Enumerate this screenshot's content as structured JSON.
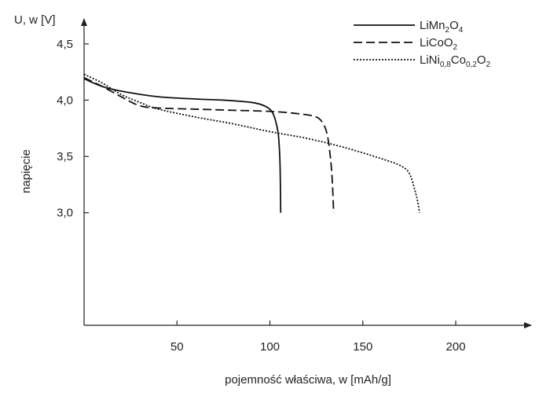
{
  "chart_data": {
    "type": "line",
    "xlabel": "pojemność właściwa, w [mAh/g]",
    "ylabel": "napięcie",
    "y_axis_unit_label": "U, w [V]",
    "xlim": [
      0,
      230
    ],
    "ylim": [
      2.0,
      4.75
    ],
    "x_ticks": [
      {
        "value": 50,
        "label": "50"
      },
      {
        "value": 100,
        "label": "100"
      },
      {
        "value": 150,
        "label": "150"
      },
      {
        "value": 200,
        "label": "200"
      }
    ],
    "y_ticks": [
      {
        "value": 3.0,
        "label": "3,0"
      },
      {
        "value": 3.5,
        "label": "3,5"
      },
      {
        "value": 4.0,
        "label": "4,0"
      },
      {
        "value": 4.5,
        "label": "4,5"
      }
    ],
    "grid": false,
    "legend_position": "top-right",
    "series": [
      {
        "name": "LiMn2O4",
        "legend_parts": [
          {
            "t": "LiMn",
            "s": "n"
          },
          {
            "t": "2",
            "s": "sub"
          },
          {
            "t": "O",
            "s": "n"
          },
          {
            "t": "4",
            "s": "sub"
          }
        ],
        "style": "solid",
        "color": "#111111",
        "points": [
          [
            0,
            4.19
          ],
          [
            10,
            4.12
          ],
          [
            20,
            4.08
          ],
          [
            40,
            4.03
          ],
          [
            60,
            4.01
          ],
          [
            75,
            4.0
          ],
          [
            90,
            3.98
          ],
          [
            97,
            3.95
          ],
          [
            101,
            3.9
          ],
          [
            103,
            3.82
          ],
          [
            104.5,
            3.7
          ],
          [
            105.3,
            3.5
          ],
          [
            105.6,
            3.3
          ],
          [
            105.8,
            3.0
          ]
        ]
      },
      {
        "name": "LiCoO2",
        "legend_parts": [
          {
            "t": "LiCoO",
            "s": "n"
          },
          {
            "t": "2",
            "s": "sub"
          }
        ],
        "style": "dashed",
        "color": "#111111",
        "points": [
          [
            0,
            4.2
          ],
          [
            10,
            4.12
          ],
          [
            20,
            4.03
          ],
          [
            30,
            3.95
          ],
          [
            40,
            3.93
          ],
          [
            60,
            3.92
          ],
          [
            80,
            3.91
          ],
          [
            100,
            3.9
          ],
          [
            115,
            3.88
          ],
          [
            125,
            3.85
          ],
          [
            129,
            3.78
          ],
          [
            131,
            3.68
          ],
          [
            132.5,
            3.5
          ],
          [
            133.5,
            3.3
          ],
          [
            134.3,
            3.0
          ]
        ]
      },
      {
        "name": "LiNi0,8Co0,2O2",
        "legend_parts": [
          {
            "t": "LiNi",
            "s": "n"
          },
          {
            "t": "0,8",
            "s": "sub"
          },
          {
            "t": "Co",
            "s": "n"
          },
          {
            "t": "0,2",
            "s": "sub"
          },
          {
            "t": "O",
            "s": "n"
          },
          {
            "t": "2",
            "s": "sub"
          }
        ],
        "style": "dotted",
        "color": "#111111",
        "points": [
          [
            0,
            4.23
          ],
          [
            10,
            4.15
          ],
          [
            20,
            4.05
          ],
          [
            30,
            3.98
          ],
          [
            40,
            3.92
          ],
          [
            60,
            3.85
          ],
          [
            80,
            3.79
          ],
          [
            100,
            3.72
          ],
          [
            120,
            3.66
          ],
          [
            140,
            3.58
          ],
          [
            160,
            3.48
          ],
          [
            170,
            3.42
          ],
          [
            175,
            3.35
          ],
          [
            178,
            3.2
          ],
          [
            179.5,
            3.1
          ],
          [
            180.5,
            3.0
          ]
        ]
      }
    ]
  }
}
